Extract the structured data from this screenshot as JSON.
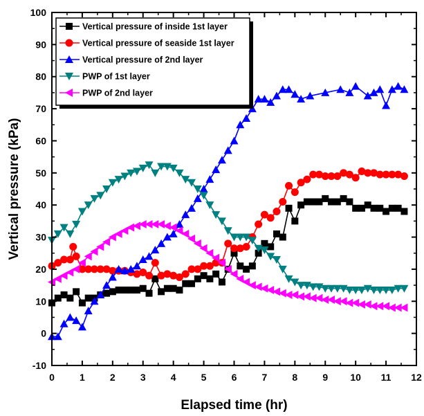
{
  "chart_data": {
    "type": "line",
    "title": "",
    "xlabel": "Elapsed time (hr)",
    "ylabel": "Vertical pressure (kPa)",
    "xlim": [
      0,
      12
    ],
    "ylim": [
      -10,
      100
    ],
    "xticks": [
      0,
      1,
      2,
      3,
      4,
      5,
      6,
      7,
      8,
      9,
      10,
      11,
      12
    ],
    "yticks": [
      -10,
      0,
      10,
      20,
      30,
      40,
      50,
      60,
      70,
      80,
      90,
      100
    ],
    "grid": false,
    "legend_position": "top-left",
    "series": [
      {
        "name": "Vertical pressure of inside 1st layer",
        "color": "#000000",
        "marker": "square",
        "x": [
          0,
          0.2,
          0.4,
          0.6,
          0.8,
          1.0,
          1.2,
          1.4,
          1.6,
          1.8,
          2.0,
          2.2,
          2.4,
          2.6,
          2.8,
          3.0,
          3.2,
          3.4,
          3.6,
          3.8,
          4.0,
          4.2,
          4.4,
          4.6,
          4.8,
          5.0,
          5.2,
          5.4,
          5.6,
          5.8,
          6.0,
          6.2,
          6.4,
          6.6,
          6.8,
          7.0,
          7.2,
          7.4,
          7.6,
          7.8,
          8.0,
          8.2,
          8.4,
          8.6,
          8.8,
          9.0,
          9.2,
          9.4,
          9.6,
          9.8,
          10.0,
          10.2,
          10.4,
          10.6,
          10.8,
          11.0,
          11.2,
          11.4,
          11.6
        ],
        "y": [
          9.5,
          11,
          12,
          11,
          13,
          9.5,
          11,
          11,
          12,
          12.5,
          13,
          13.5,
          13.5,
          13.5,
          13.5,
          14,
          12.5,
          17,
          13,
          14,
          14,
          13.5,
          15.5,
          15.5,
          17,
          18,
          17,
          18.5,
          16,
          20,
          25,
          21,
          20,
          21,
          25,
          28,
          27,
          31,
          30,
          39,
          35,
          40,
          41,
          41,
          41,
          42,
          41,
          41,
          42,
          41,
          39,
          39,
          40,
          39,
          39,
          38,
          39,
          39,
          38
        ]
      },
      {
        "name": "Vertical pressure of seaside 1st layer",
        "color": "#ff0000",
        "marker": "circle",
        "x": [
          0,
          0.2,
          0.4,
          0.6,
          0.7,
          0.8,
          1.0,
          1.2,
          1.4,
          1.6,
          1.8,
          2.0,
          2.2,
          2.4,
          2.6,
          2.8,
          3.0,
          3.2,
          3.4,
          3.6,
          3.8,
          4.0,
          4.2,
          4.4,
          4.6,
          4.8,
          5.0,
          5.2,
          5.4,
          5.6,
          5.8,
          6.0,
          6.2,
          6.4,
          6.6,
          6.8,
          7.0,
          7.2,
          7.4,
          7.6,
          7.8,
          8.0,
          8.2,
          8.4,
          8.6,
          8.8,
          9.0,
          9.2,
          9.4,
          9.6,
          9.8,
          10.0,
          10.2,
          10.4,
          10.6,
          10.8,
          11.0,
          11.2,
          11.4,
          11.6
        ],
        "y": [
          21,
          22,
          23,
          23,
          27,
          24,
          20,
          20,
          20,
          20,
          20,
          19.5,
          19.5,
          19.5,
          19,
          18.5,
          19,
          18,
          22,
          18,
          18.5,
          18,
          17.5,
          18.5,
          20,
          20,
          21,
          21,
          22,
          22,
          28,
          26.5,
          26.5,
          27,
          30,
          34,
          37,
          36,
          38,
          41,
          46,
          44,
          47,
          48,
          49.5,
          49.5,
          49,
          49,
          49,
          50,
          49.5,
          48.5,
          50.5,
          50,
          50,
          49.5,
          49.5,
          49.5,
          49.5,
          49
        ]
      },
      {
        "name": "Vertical pressure of 2nd layer",
        "color": "#0000ff",
        "marker": "triangle-up",
        "x": [
          0,
          0.2,
          0.4,
          0.6,
          0.8,
          1.0,
          1.2,
          1.4,
          1.6,
          1.8,
          2.0,
          2.2,
          2.4,
          2.6,
          2.8,
          3.0,
          3.2,
          3.4,
          3.6,
          3.8,
          4.0,
          4.2,
          4.4,
          4.6,
          4.8,
          5.0,
          5.2,
          5.4,
          5.6,
          5.8,
          6.0,
          6.2,
          6.4,
          6.6,
          6.8,
          7.0,
          7.2,
          7.4,
          7.6,
          7.8,
          8.0,
          8.2,
          8.5,
          9.0,
          9.5,
          9.8,
          10.0,
          10.4,
          10.6,
          10.8,
          11.0,
          11.2,
          11.4,
          11.6
        ],
        "y": [
          -1,
          -1,
          3,
          5,
          4,
          2,
          7,
          10,
          12,
          15,
          17.5,
          20,
          19.5,
          20,
          21,
          23,
          24,
          26,
          28,
          30,
          31,
          34,
          37,
          39,
          42,
          45,
          48,
          51,
          54,
          57,
          60,
          65,
          67,
          70,
          73,
          73,
          72,
          74,
          76,
          76,
          74.5,
          73,
          74,
          75,
          76,
          75,
          77,
          74,
          75,
          76,
          71,
          76,
          77,
          76
        ]
      },
      {
        "name": "PWP of 1st layer",
        "color": "#008080",
        "marker": "triangle-down",
        "x": [
          0,
          0.2,
          0.4,
          0.6,
          0.8,
          1.0,
          1.2,
          1.4,
          1.6,
          1.8,
          2.0,
          2.2,
          2.4,
          2.6,
          2.8,
          3.0,
          3.2,
          3.4,
          3.6,
          3.8,
          4.0,
          4.2,
          4.4,
          4.6,
          4.8,
          5.0,
          5.2,
          5.4,
          5.6,
          5.8,
          6.0,
          6.2,
          6.4,
          6.6,
          6.8,
          7.0,
          7.2,
          7.4,
          7.6,
          7.8,
          8.0,
          8.2,
          8.4,
          8.6,
          8.8,
          9.0,
          9.2,
          9.4,
          9.6,
          9.8,
          10.0,
          10.2,
          10.4,
          10.6,
          10.8,
          11.0,
          11.2,
          11.4,
          11.6
        ],
        "y": [
          29,
          31,
          33,
          31,
          34,
          38,
          40,
          42,
          43,
          45,
          47,
          48,
          49,
          50,
          50.5,
          51.5,
          52.5,
          50,
          52,
          52,
          51.5,
          50,
          48,
          47,
          45,
          43,
          40,
          37,
          35,
          32,
          30,
          30,
          30,
          29,
          26.5,
          26,
          24,
          23,
          20,
          17,
          16,
          15,
          15,
          14.5,
          14.5,
          14,
          14,
          14,
          14,
          13.5,
          13.5,
          13.5,
          14,
          13.5,
          13.5,
          13.5,
          13.5,
          14,
          14
        ]
      },
      {
        "name": "PWP of 2nd layer",
        "color": "#ff00ff",
        "marker": "triangle-left",
        "x": [
          0,
          0.2,
          0.4,
          0.6,
          0.8,
          1.0,
          1.2,
          1.4,
          1.6,
          1.8,
          2.0,
          2.2,
          2.4,
          2.6,
          2.8,
          3.0,
          3.2,
          3.4,
          3.6,
          3.8,
          4.0,
          4.2,
          4.4,
          4.6,
          4.8,
          5.0,
          5.2,
          5.4,
          5.6,
          5.8,
          6.0,
          6.2,
          6.4,
          6.6,
          6.8,
          7.0,
          7.2,
          7.4,
          7.6,
          7.8,
          8.0,
          8.2,
          8.4,
          8.6,
          8.8,
          9.0,
          9.2,
          9.4,
          9.6,
          9.8,
          10.0,
          10.2,
          10.4,
          10.6,
          10.8,
          11.0,
          11.2,
          11.4,
          11.6
        ],
        "y": [
          16,
          17,
          18,
          19,
          20,
          22,
          24,
          25.5,
          27,
          28.5,
          30,
          31,
          32,
          33,
          33.5,
          34,
          34,
          34,
          34,
          33.5,
          33,
          32,
          31,
          29.5,
          28,
          26.5,
          25,
          23.5,
          22,
          20,
          18.5,
          17,
          16,
          15,
          14.5,
          14,
          13.5,
          13,
          12.5,
          12,
          12,
          11.5,
          11.5,
          11,
          11,
          10.5,
          10.5,
          10,
          10,
          9.5,
          9.5,
          9,
          9,
          8.5,
          8.5,
          8.5,
          8,
          8,
          8
        ]
      }
    ]
  }
}
